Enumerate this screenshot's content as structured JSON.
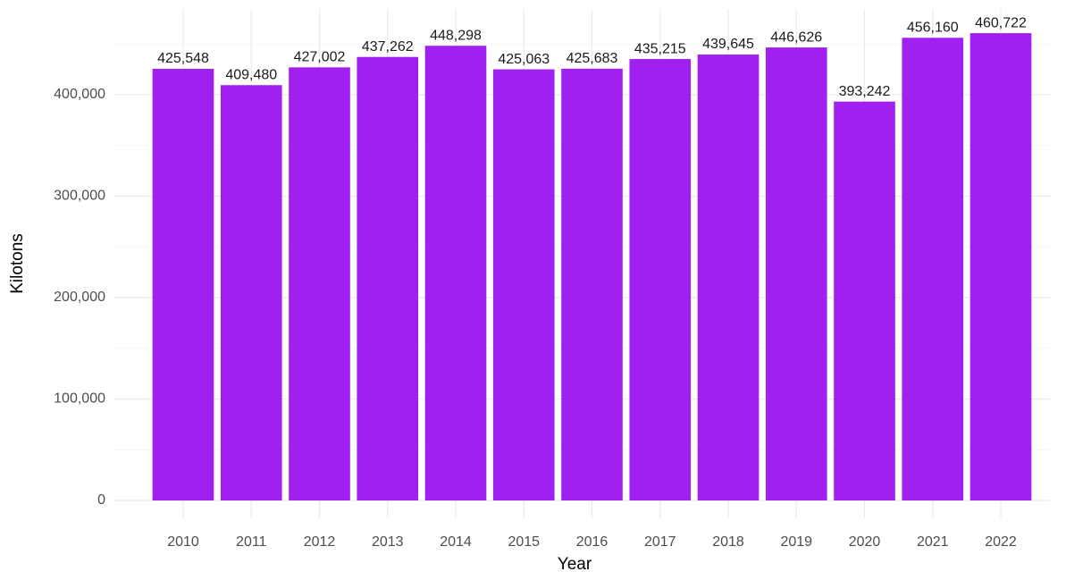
{
  "chart_data": {
    "type": "bar",
    "x_label": "Year",
    "y_label": "Kilotons",
    "categories": [
      "2010",
      "2011",
      "2012",
      "2013",
      "2014",
      "2015",
      "2016",
      "2017",
      "2018",
      "2019",
      "2020",
      "2021",
      "2022"
    ],
    "values": [
      425548,
      409480,
      427002,
      437262,
      448298,
      425063,
      425683,
      435215,
      439645,
      446626,
      393242,
      456160,
      460722
    ],
    "value_labels": [
      "425,548",
      "409,480",
      "427,002",
      "437,262",
      "448,298",
      "425,063",
      "425,683",
      "435,215",
      "439,645",
      "446,626",
      "393,242",
      "456,160",
      "460,722"
    ],
    "color": "#a020f0",
    "ylim": [
      -17600,
      484600
    ],
    "yticks": [
      0,
      {
        "value": 100000,
        "label": "100,000"
      },
      {
        "value": 200000,
        "label": "200,000"
      },
      {
        "value": 300000,
        "label": "300,000"
      },
      {
        "value": 400000,
        "label": "400,000"
      }
    ],
    "grid": true
  }
}
